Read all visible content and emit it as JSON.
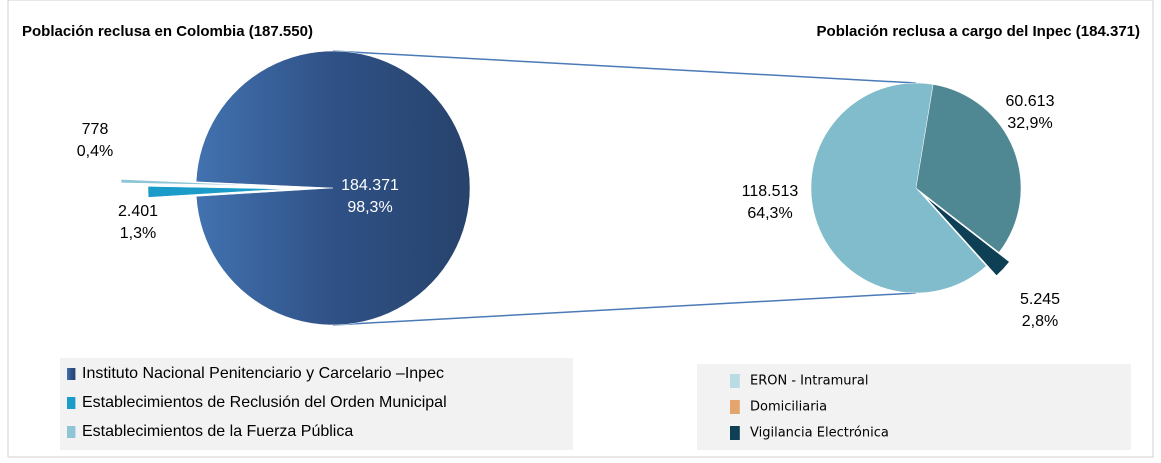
{
  "chart_data": [
    {
      "type": "pie",
      "title": "Población reclusa en Colombia (187.550)",
      "categories": [
        "Instituto Nacional Penitenciario y Carcelario –Inpec",
        "Establecimientos de Reclusión del Orden Municipal",
        "Establecimientos de la Fuerza Pública"
      ],
      "values": [
        184371,
        2401,
        778
      ],
      "value_labels": [
        "184.371",
        "2.401",
        "778"
      ],
      "percent_labels": [
        "98,3%",
        "1,3%",
        "0,4%"
      ],
      "colors": [
        "#34598f",
        "#1a9bc8",
        "#8fc6d6"
      ]
    },
    {
      "type": "pie",
      "title": "Población reclusa a cargo del Inpec (184.371)",
      "categories": [
        "ERON - Intramural",
        "Domiciliaria",
        "Vigilancia Electrónica"
      ],
      "values": [
        118513,
        60613,
        5245
      ],
      "value_labels": [
        "118.513",
        "60.613",
        "5.245"
      ],
      "percent_labels": [
        "64,3%",
        "32,9%",
        "2,8%"
      ],
      "colors": [
        "#80bccb",
        "#4f8893",
        "#0d3f55"
      ],
      "legend_colors": [
        "#b9dbe4",
        "#e4a46e",
        "#0d3f55"
      ]
    }
  ]
}
